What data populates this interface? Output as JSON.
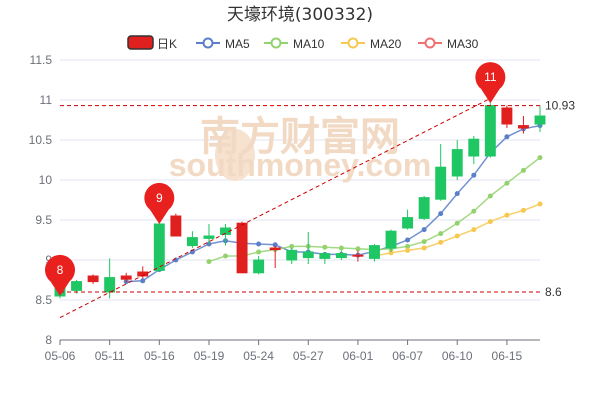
{
  "chart_data": {
    "type": "candlestick",
    "title": "天壕环境(300332)",
    "legend": [
      "日K",
      "MA5",
      "MA10",
      "MA20",
      "MA30"
    ],
    "watermark": "southmoney.com",
    "watermark_cn": "南方财富网",
    "ylim": [
      8,
      11.5
    ],
    "yticks": [
      8,
      8.5,
      9,
      9.5,
      10,
      10.5,
      11,
      11.5
    ],
    "xtick_labels": [
      {
        "date": "05-06",
        "label": "05-06"
      },
      {
        "date": "05-11",
        "label": "05-11"
      },
      {
        "date": "05-16",
        "label": "05-16"
      },
      {
        "date": "05-19",
        "label": "05-19"
      },
      {
        "date": "05-24",
        "label": "05-24"
      },
      {
        "date": "05-27",
        "label": "05-27"
      },
      {
        "date": "06-01",
        "label": "06-01"
      },
      {
        "date": "06-07",
        "label": "06-07"
      },
      {
        "date": "06-10",
        "label": "06-10"
      },
      {
        "date": "06-15",
        "label": "06-15"
      }
    ],
    "dates": [
      "05-06",
      "05-09",
      "05-10",
      "05-11",
      "05-12",
      "05-13",
      "05-16",
      "05-17",
      "05-18",
      "05-19",
      "05-20",
      "05-23",
      "05-24",
      "05-25",
      "05-26",
      "05-27",
      "05-30",
      "05-31",
      "06-01",
      "06-02",
      "06-06",
      "06-07",
      "06-08",
      "06-09",
      "06-10",
      "06-13",
      "06-14",
      "06-15",
      "06-16",
      "06-17"
    ],
    "ohlc": [
      [
        8.73,
        8.55,
        8.95,
        8.52
      ],
      [
        8.73,
        8.62,
        8.75,
        8.58
      ],
      [
        8.73,
        8.8,
        8.82,
        8.7
      ],
      [
        8.78,
        8.6,
        9.02,
        8.52
      ],
      [
        8.76,
        8.8,
        8.84,
        8.72
      ],
      [
        8.8,
        8.85,
        8.92,
        8.77
      ],
      [
        9.45,
        8.87,
        9.45,
        8.85
      ],
      [
        9.3,
        9.55,
        9.58,
        9.3
      ],
      [
        9.28,
        9.18,
        9.36,
        9.15
      ],
      [
        9.3,
        9.27,
        9.45,
        9.2
      ],
      [
        9.4,
        9.32,
        9.45,
        9.18
      ],
      [
        8.84,
        9.46,
        9.48,
        8.84
      ],
      [
        9.0,
        8.84,
        9.05,
        8.82
      ],
      [
        9.13,
        9.15,
        9.18,
        8.9
      ],
      [
        9.12,
        9.0,
        9.15,
        8.95
      ],
      [
        9.1,
        9.03,
        9.35,
        8.95
      ],
      [
        9.08,
        9.02,
        9.1,
        8.95
      ],
      [
        9.08,
        9.03,
        9.12,
        9.0
      ],
      [
        9.06,
        9.06,
        9.12,
        8.98
      ],
      [
        9.18,
        9.02,
        9.2,
        8.98
      ],
      [
        9.36,
        9.15,
        9.38,
        9.1
      ],
      [
        9.53,
        9.4,
        9.63,
        9.38
      ],
      [
        9.78,
        9.52,
        9.8,
        9.5
      ],
      [
        10.16,
        9.76,
        10.45,
        9.74
      ],
      [
        10.38,
        10.05,
        10.5,
        10.0
      ],
      [
        10.51,
        10.3,
        10.55,
        10.2
      ],
      [
        10.93,
        10.3,
        10.96,
        10.28
      ],
      [
        10.7,
        10.9,
        10.93,
        10.65
      ],
      [
        10.65,
        10.68,
        10.8,
        10.58
      ],
      [
        10.8,
        10.7,
        10.93,
        10.6
      ]
    ],
    "ma5": [
      null,
      null,
      null,
      null,
      8.73,
      8.74,
      8.88,
      9.0,
      9.1,
      9.2,
      9.24,
      9.21,
      9.2,
      9.19,
      9.1,
      9.1,
      9.07,
      9.07,
      9.06,
      9.11,
      9.17,
      9.25,
      9.38,
      9.58,
      9.83,
      10.06,
      10.34,
      10.54,
      10.64,
      10.68
    ],
    "ma10": [
      null,
      null,
      null,
      null,
      null,
      null,
      null,
      null,
      null,
      8.98,
      9.05,
      9.05,
      9.1,
      9.13,
      9.17,
      9.17,
      9.16,
      9.15,
      9.14,
      9.13,
      9.14,
      9.17,
      9.23,
      9.33,
      9.46,
      9.61,
      9.8,
      9.96,
      10.12,
      10.28
    ],
    "ma20": [
      null,
      null,
      null,
      null,
      null,
      null,
      null,
      null,
      null,
      null,
      null,
      null,
      null,
      null,
      null,
      null,
      null,
      null,
      null,
      9.05,
      9.09,
      9.12,
      9.15,
      9.22,
      9.3,
      9.38,
      9.48,
      9.56,
      9.62,
      9.7
    ],
    "ma30": [],
    "colors": {
      "up": "#e01f1f",
      "down": "#1ec763",
      "ma5": "#5b7fc9",
      "ma10": "#94d26f",
      "ma20": "#f6c84f",
      "ma30": "#f07070"
    },
    "reference_lines": [
      {
        "value": 10.93,
        "label": "10.93"
      },
      {
        "value": 8.6,
        "label": "8.6"
      }
    ],
    "pins": [
      {
        "index": 0,
        "value": 8.55,
        "label": "8"
      },
      {
        "index": 6,
        "value": 9.45,
        "label": "9"
      },
      {
        "index": 26,
        "value": 10.96,
        "label": "11"
      }
    ],
    "trendline": {
      "from_index": 0,
      "from_value": 8.28,
      "to_index": 26,
      "to_value": 11.02
    }
  }
}
